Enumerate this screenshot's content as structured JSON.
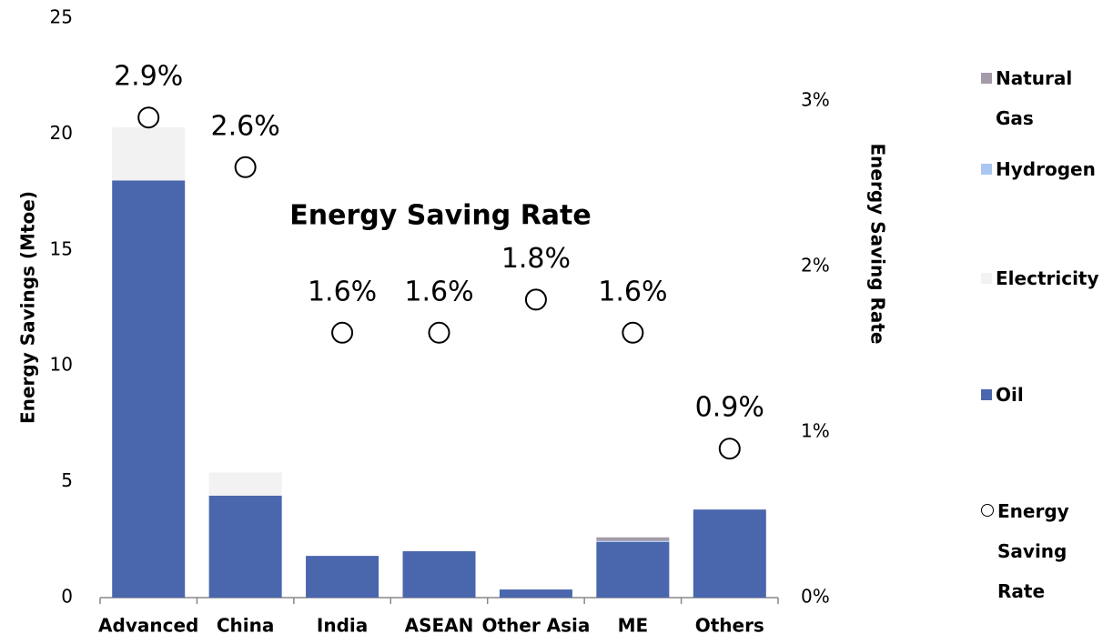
{
  "chart_data": {
    "type": "bar",
    "annotation": "Energy Saving Rate",
    "ylabel": "Energy Savings (Mtoe)",
    "y2label": "Energy Saving Rate",
    "categories": [
      "Advanced",
      "China",
      "India",
      "ASEAN",
      "Other Asia",
      "ME",
      "Others"
    ],
    "stacked": true,
    "series": [
      {
        "name": "Oil",
        "color": "#4a66ac",
        "values": [
          18.0,
          4.4,
          1.8,
          2.0,
          0.35,
          2.4,
          3.8
        ]
      },
      {
        "name": "Electricity",
        "color": "#f2f2f2",
        "values": [
          2.3,
          1.0,
          0,
          0,
          0,
          0,
          0
        ]
      },
      {
        "name": "Hydrogen",
        "color": "#a9c7f0",
        "values": [
          0,
          0,
          0,
          0,
          0,
          0.05,
          0
        ]
      },
      {
        "name": "Natural Gas",
        "color": "#a49aa8",
        "values": [
          0,
          0,
          0,
          0,
          0,
          0.15,
          0
        ]
      },
      {
        "name": "Energy Saving Rate",
        "type": "scatter",
        "axis": "y2",
        "color": "#000000",
        "values": [
          2.9,
          2.6,
          1.6,
          1.6,
          1.8,
          1.6,
          0.9
        ],
        "value_labels": [
          "2.9%",
          "2.6%",
          "1.6%",
          "1.6%",
          "1.8%",
          "1.6%",
          "0.9%"
        ]
      }
    ],
    "ylim": [
      0,
      25
    ],
    "yticks": [
      0,
      5,
      10,
      15,
      20,
      25
    ],
    "y2lim": [
      0,
      3.5
    ],
    "y2ticks": [
      {
        "value": 0,
        "label": "0%"
      },
      {
        "value": 1,
        "label": "1%"
      },
      {
        "value": 2,
        "label": "2%"
      },
      {
        "value": 3,
        "label": "3%"
      }
    ],
    "legend": "right"
  }
}
